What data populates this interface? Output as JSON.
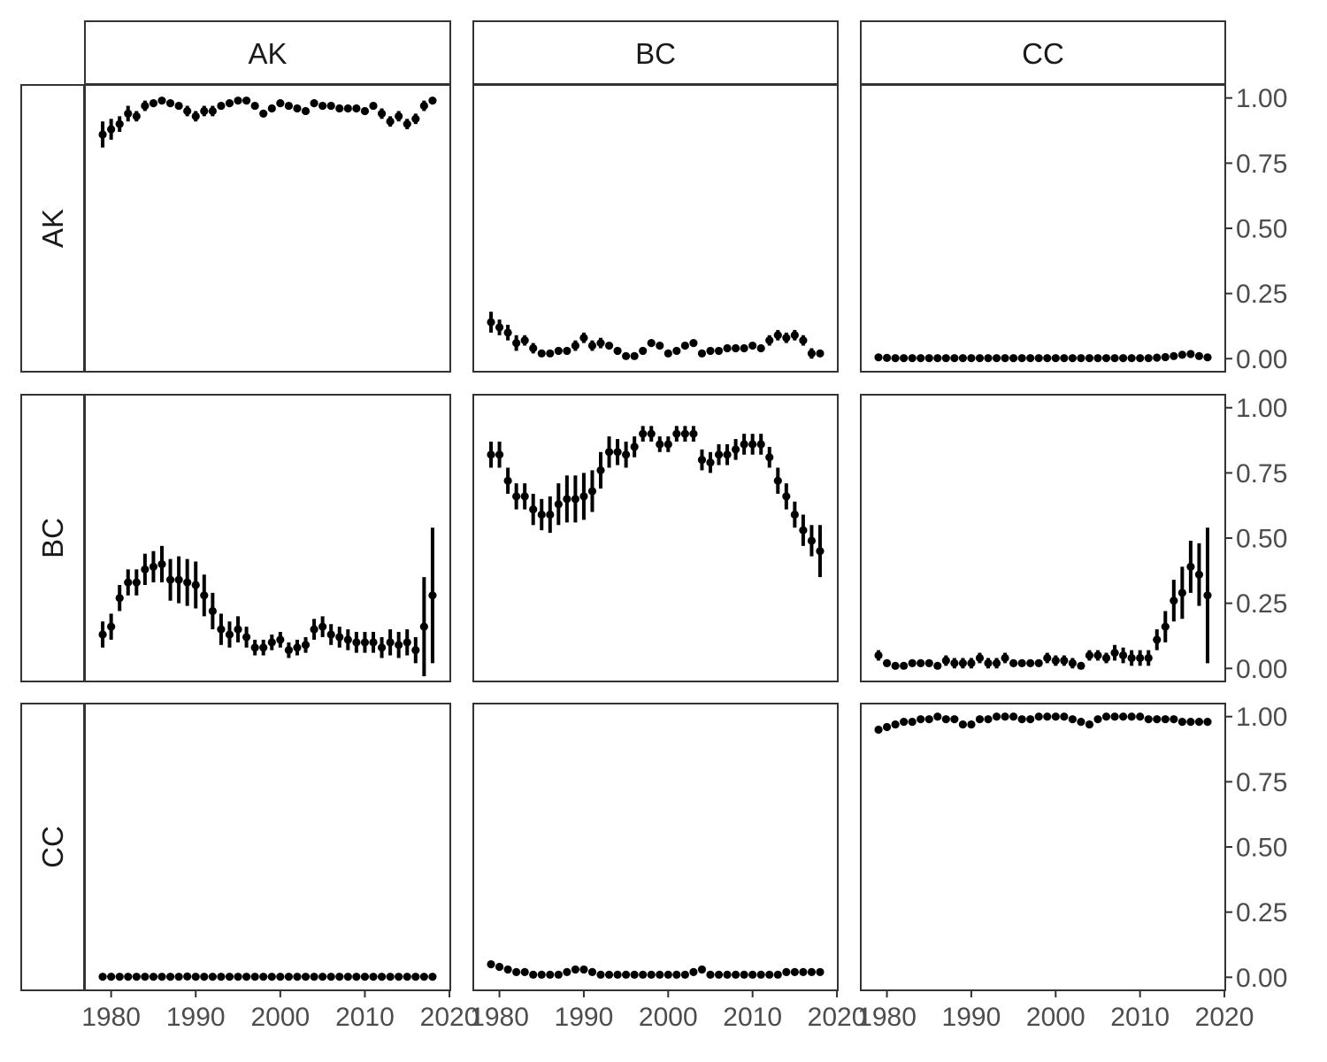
{
  "chart_data": {
    "type": "scatter",
    "description_of_layout": "facet grid",
    "column_labels": [
      "AK",
      "BC",
      "CC"
    ],
    "row_labels": [
      "AK",
      "BC",
      "CC"
    ],
    "x": [
      1979,
      1980,
      1981,
      1982,
      1983,
      1984,
      1985,
      1986,
      1987,
      1988,
      1989,
      1990,
      1991,
      1992,
      1993,
      1994,
      1995,
      1996,
      1997,
      1998,
      1999,
      2000,
      2001,
      2002,
      2003,
      2004,
      2005,
      2006,
      2007,
      2008,
      2009,
      2010,
      2011,
      2012,
      2013,
      2014,
      2015,
      2016,
      2017,
      2018
    ],
    "xlim": [
      1976.9,
      2020.1
    ],
    "x_ticks": [
      1980,
      1990,
      2000,
      2010,
      2020
    ],
    "x_tick_labels": [
      "1980",
      "1990",
      "2000",
      "2010",
      "2020"
    ],
    "ylim": [
      -0.05,
      1.05
    ],
    "y_ticks": [
      0,
      0.25,
      0.5,
      0.75,
      1.0
    ],
    "y_tick_labels": [
      "0.00",
      "0.25",
      "0.50",
      "0.75",
      "1.00"
    ],
    "y_axis_position": "right",
    "grid": false,
    "xlabel": "",
    "ylabel": "",
    "title": "",
    "color": "#000000",
    "panels": [
      {
        "row": "AK",
        "col": "AK",
        "y": [
          0.86,
          0.88,
          0.9,
          0.94,
          0.93,
          0.97,
          0.98,
          0.99,
          0.98,
          0.97,
          0.95,
          0.93,
          0.95,
          0.95,
          0.97,
          0.98,
          0.99,
          0.99,
          0.97,
          0.94,
          0.96,
          0.98,
          0.97,
          0.96,
          0.95,
          0.98,
          0.97,
          0.97,
          0.96,
          0.96,
          0.96,
          0.95,
          0.97,
          0.94,
          0.91,
          0.93,
          0.9,
          0.92,
          0.97,
          0.99
        ],
        "err": [
          0.05,
          0.04,
          0.03,
          0.03,
          0.02,
          0.02,
          0.01,
          0.01,
          0.01,
          0.01,
          0.02,
          0.02,
          0.02,
          0.02,
          0.01,
          0.01,
          0.01,
          0.01,
          0.01,
          0.01,
          0.01,
          0.01,
          0.01,
          0.01,
          0.01,
          0.01,
          0.01,
          0.01,
          0.01,
          0.01,
          0.01,
          0.01,
          0.01,
          0.02,
          0.02,
          0.02,
          0.02,
          0.02,
          0.02,
          0.01
        ]
      },
      {
        "row": "AK",
        "col": "BC",
        "y": [
          0.14,
          0.12,
          0.1,
          0.06,
          0.07,
          0.04,
          0.02,
          0.02,
          0.03,
          0.03,
          0.05,
          0.08,
          0.05,
          0.06,
          0.05,
          0.03,
          0.01,
          0.01,
          0.03,
          0.06,
          0.05,
          0.02,
          0.03,
          0.05,
          0.06,
          0.02,
          0.03,
          0.03,
          0.04,
          0.04,
          0.04,
          0.05,
          0.04,
          0.07,
          0.09,
          0.08,
          0.09,
          0.07,
          0.02,
          0.02
        ],
        "err": [
          0.04,
          0.03,
          0.03,
          0.03,
          0.02,
          0.02,
          0.01,
          0.01,
          0.01,
          0.01,
          0.02,
          0.02,
          0.02,
          0.02,
          0.01,
          0.01,
          0.01,
          0.01,
          0.01,
          0.01,
          0.01,
          0.01,
          0.01,
          0.01,
          0.01,
          0.01,
          0.01,
          0.01,
          0.01,
          0.01,
          0.01,
          0.01,
          0.01,
          0.02,
          0.02,
          0.02,
          0.02,
          0.02,
          0.02,
          0.01
        ]
      },
      {
        "row": "AK",
        "col": "CC",
        "y": [
          0.005,
          0.003,
          0.002,
          0.002,
          0.002,
          0.002,
          0.002,
          0.002,
          0.002,
          0.002,
          0.002,
          0.002,
          0.002,
          0.002,
          0.002,
          0.002,
          0.002,
          0.002,
          0.002,
          0.002,
          0.002,
          0.002,
          0.002,
          0.002,
          0.002,
          0.002,
          0.002,
          0.002,
          0.002,
          0.002,
          0.002,
          0.002,
          0.002,
          0.004,
          0.006,
          0.01,
          0.015,
          0.018,
          0.01,
          0.005
        ],
        "err": [
          0.003,
          0.002,
          0.002,
          0.002,
          0.002,
          0.002,
          0.002,
          0.002,
          0.002,
          0.002,
          0.002,
          0.002,
          0.002,
          0.002,
          0.002,
          0.002,
          0.002,
          0.002,
          0.002,
          0.002,
          0.002,
          0.002,
          0.002,
          0.002,
          0.002,
          0.002,
          0.002,
          0.002,
          0.002,
          0.002,
          0.002,
          0.002,
          0.002,
          0.002,
          0.003,
          0.004,
          0.005,
          0.005,
          0.004,
          0.003
        ]
      },
      {
        "row": "BC",
        "col": "AK",
        "y": [
          0.13,
          0.16,
          0.27,
          0.33,
          0.33,
          0.38,
          0.39,
          0.4,
          0.34,
          0.34,
          0.33,
          0.32,
          0.28,
          0.22,
          0.15,
          0.13,
          0.15,
          0.12,
          0.08,
          0.08,
          0.1,
          0.11,
          0.07,
          0.08,
          0.09,
          0.15,
          0.16,
          0.13,
          0.12,
          0.11,
          0.1,
          0.1,
          0.1,
          0.08,
          0.1,
          0.09,
          0.1,
          0.07,
          0.16,
          0.28
        ],
        "err": [
          0.05,
          0.05,
          0.05,
          0.05,
          0.05,
          0.06,
          0.06,
          0.07,
          0.08,
          0.09,
          0.09,
          0.09,
          0.08,
          0.07,
          0.06,
          0.05,
          0.05,
          0.04,
          0.03,
          0.03,
          0.03,
          0.03,
          0.03,
          0.03,
          0.03,
          0.04,
          0.04,
          0.04,
          0.04,
          0.04,
          0.04,
          0.04,
          0.04,
          0.04,
          0.05,
          0.05,
          0.05,
          0.05,
          0.19,
          0.26
        ]
      },
      {
        "row": "BC",
        "col": "BC",
        "y": [
          0.82,
          0.82,
          0.72,
          0.66,
          0.66,
          0.61,
          0.59,
          0.59,
          0.63,
          0.65,
          0.65,
          0.66,
          0.68,
          0.76,
          0.83,
          0.83,
          0.82,
          0.85,
          0.9,
          0.9,
          0.86,
          0.86,
          0.9,
          0.9,
          0.9,
          0.8,
          0.79,
          0.82,
          0.82,
          0.84,
          0.86,
          0.86,
          0.86,
          0.81,
          0.72,
          0.66,
          0.59,
          0.53,
          0.49,
          0.45
        ],
        "err": [
          0.05,
          0.05,
          0.05,
          0.05,
          0.05,
          0.06,
          0.06,
          0.07,
          0.08,
          0.09,
          0.09,
          0.09,
          0.08,
          0.07,
          0.06,
          0.05,
          0.05,
          0.04,
          0.03,
          0.03,
          0.03,
          0.03,
          0.03,
          0.03,
          0.03,
          0.04,
          0.04,
          0.04,
          0.04,
          0.04,
          0.04,
          0.04,
          0.04,
          0.04,
          0.05,
          0.05,
          0.05,
          0.06,
          0.06,
          0.1
        ]
      },
      {
        "row": "BC",
        "col": "CC",
        "y": [
          0.05,
          0.02,
          0.01,
          0.01,
          0.02,
          0.02,
          0.02,
          0.01,
          0.03,
          0.02,
          0.02,
          0.02,
          0.04,
          0.02,
          0.02,
          0.04,
          0.02,
          0.02,
          0.02,
          0.02,
          0.04,
          0.03,
          0.03,
          0.02,
          0.01,
          0.05,
          0.05,
          0.04,
          0.06,
          0.05,
          0.04,
          0.04,
          0.04,
          0.11,
          0.16,
          0.26,
          0.29,
          0.39,
          0.36,
          0.28
        ],
        "err": [
          0.02,
          0.01,
          0.01,
          0.01,
          0.01,
          0.01,
          0.01,
          0.01,
          0.02,
          0.02,
          0.02,
          0.02,
          0.02,
          0.02,
          0.02,
          0.02,
          0.01,
          0.01,
          0.01,
          0.01,
          0.02,
          0.02,
          0.02,
          0.02,
          0.01,
          0.02,
          0.02,
          0.02,
          0.03,
          0.03,
          0.03,
          0.03,
          0.03,
          0.04,
          0.06,
          0.08,
          0.1,
          0.1,
          0.12,
          0.26
        ]
      },
      {
        "row": "CC",
        "col": "AK",
        "y": [
          0.002,
          0.002,
          0.002,
          0.002,
          0.002,
          0.002,
          0.002,
          0.002,
          0.002,
          0.002,
          0.003,
          0.002,
          0.002,
          0.002,
          0.002,
          0.002,
          0.002,
          0.002,
          0.002,
          0.002,
          0.002,
          0.002,
          0.002,
          0.002,
          0.002,
          0.002,
          0.002,
          0.002,
          0.002,
          0.002,
          0.002,
          0.002,
          0.002,
          0.002,
          0.002,
          0.002,
          0.002,
          0.002,
          0.002,
          0.002
        ],
        "err": [
          0.002,
          0.002,
          0.002,
          0.002,
          0.002,
          0.002,
          0.002,
          0.002,
          0.002,
          0.002,
          0.002,
          0.002,
          0.002,
          0.002,
          0.002,
          0.002,
          0.002,
          0.002,
          0.002,
          0.002,
          0.002,
          0.002,
          0.002,
          0.002,
          0.002,
          0.002,
          0.002,
          0.002,
          0.002,
          0.002,
          0.002,
          0.002,
          0.002,
          0.002,
          0.002,
          0.002,
          0.002,
          0.002,
          0.002,
          0.002
        ]
      },
      {
        "row": "CC",
        "col": "BC",
        "y": [
          0.05,
          0.04,
          0.03,
          0.02,
          0.02,
          0.01,
          0.01,
          0.01,
          0.01,
          0.02,
          0.03,
          0.03,
          0.02,
          0.01,
          0.01,
          0.01,
          0.01,
          0.01,
          0.01,
          0.01,
          0.01,
          0.01,
          0.01,
          0.01,
          0.02,
          0.03,
          0.01,
          0.01,
          0.01,
          0.01,
          0.01,
          0.01,
          0.01,
          0.01,
          0.01,
          0.02,
          0.02,
          0.02,
          0.02,
          0.02
        ],
        "err": [
          0.01,
          0.01,
          0.01,
          0.01,
          0.01,
          0.01,
          0.005,
          0.005,
          0.005,
          0.01,
          0.01,
          0.01,
          0.01,
          0.005,
          0.005,
          0.005,
          0.005,
          0.005,
          0.005,
          0.005,
          0.005,
          0.005,
          0.005,
          0.005,
          0.01,
          0.01,
          0.005,
          0.005,
          0.005,
          0.005,
          0.005,
          0.005,
          0.005,
          0.005,
          0.005,
          0.005,
          0.005,
          0.005,
          0.005,
          0.005
        ]
      },
      {
        "row": "CC",
        "col": "CC",
        "y": [
          0.95,
          0.96,
          0.97,
          0.98,
          0.98,
          0.99,
          0.99,
          1.0,
          0.99,
          0.99,
          0.97,
          0.97,
          0.99,
          0.99,
          1.0,
          1.0,
          1.0,
          0.99,
          0.99,
          1.0,
          1.0,
          1.0,
          1.0,
          0.99,
          0.98,
          0.97,
          0.99,
          1.0,
          1.0,
          1.0,
          1.0,
          1.0,
          0.99,
          0.99,
          0.99,
          0.99,
          0.98,
          0.98,
          0.98,
          0.98
        ],
        "err": [
          0.01,
          0.01,
          0.01,
          0.01,
          0.01,
          0.01,
          0.005,
          0.005,
          0.005,
          0.01,
          0.01,
          0.01,
          0.01,
          0.005,
          0.005,
          0.005,
          0.005,
          0.005,
          0.005,
          0.005,
          0.005,
          0.005,
          0.005,
          0.005,
          0.01,
          0.01,
          0.005,
          0.005,
          0.005,
          0.005,
          0.005,
          0.005,
          0.005,
          0.005,
          0.005,
          0.005,
          0.005,
          0.005,
          0.005,
          0.005
        ]
      }
    ]
  }
}
